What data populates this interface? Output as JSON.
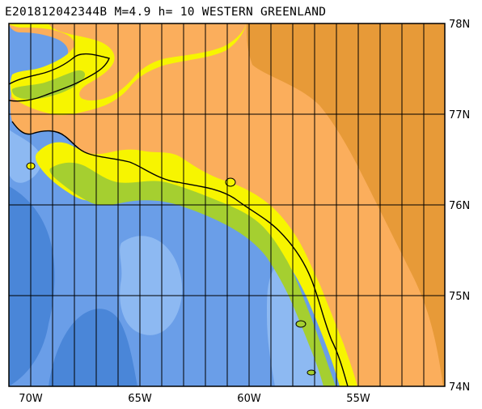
{
  "title": "E201812042344B M=4.9 h= 10 WESTERN GREENLAND",
  "colors": {
    "ocean_deep": "#4a86d8",
    "ocean_mid": "#6a9ee8",
    "ocean_shallow": "#8db9f2",
    "coast_green": "#a5cf30",
    "coast_yellow": "#f7f500",
    "land_orange": "#fbae5c",
    "ice_orange": "#e79a38",
    "grid": "#000000"
  },
  "lat_labels": [
    "78N",
    "77N",
    "76N",
    "75N",
    "74N"
  ],
  "lon_labels": [
    "70W",
    "65W",
    "60W",
    "55W"
  ]
}
